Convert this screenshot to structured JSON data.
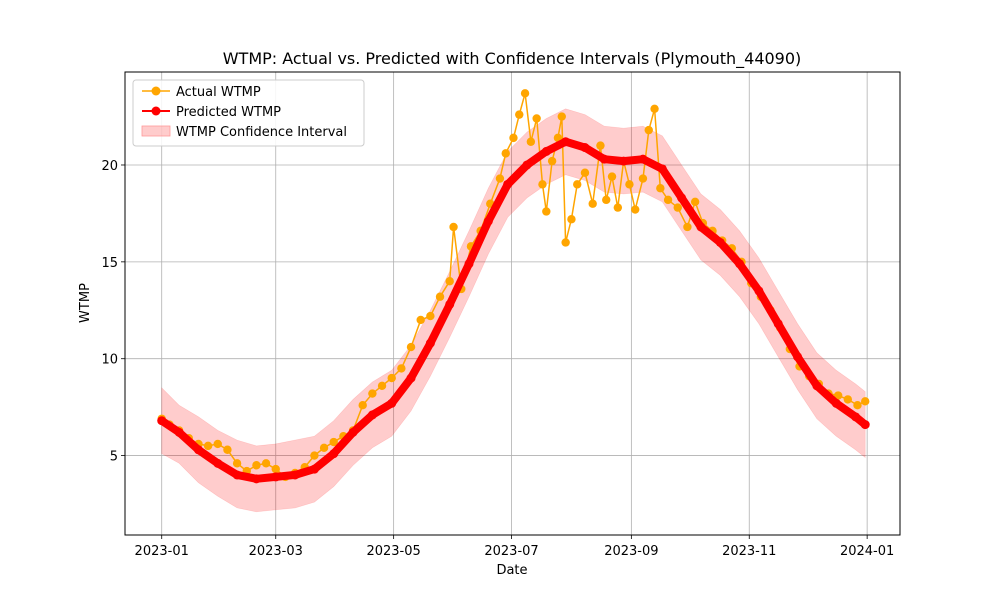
{
  "chart_data": {
    "type": "line",
    "title": "WTMP: Actual vs. Predicted with Confidence Intervals (Plymouth_44090)",
    "xlabel": "Date",
    "ylabel": "WTMP",
    "xlim": [
      "2022-12-13",
      "2024-01-18"
    ],
    "ylim": [
      0.9,
      24.8
    ],
    "x_ticks": [
      "2023-01",
      "2023-03",
      "2023-05",
      "2023-07",
      "2023-09",
      "2023-11",
      "2024-01"
    ],
    "x_tick_dates": [
      "2023-01-01",
      "2023-03-01",
      "2023-05-01",
      "2023-07-01",
      "2023-09-01",
      "2023-11-01",
      "2024-01-01"
    ],
    "y_ticks": [
      5,
      10,
      15,
      20
    ],
    "grid": true,
    "legend_position": "upper-left",
    "colors": {
      "actual": "#ffa500",
      "predicted": "#ff0000",
      "ci": "#ff0000"
    },
    "series": [
      {
        "name": "Actual WTMP",
        "marker": "circle",
        "points": [
          [
            "2023-01-01",
            6.9
          ],
          [
            "2023-01-05",
            6.6
          ],
          [
            "2023-01-10",
            6.3
          ],
          [
            "2023-01-15",
            5.9
          ],
          [
            "2023-01-20",
            5.6
          ],
          [
            "2023-01-25",
            5.5
          ],
          [
            "2023-01-30",
            5.6
          ],
          [
            "2023-02-04",
            5.3
          ],
          [
            "2023-02-09",
            4.6
          ],
          [
            "2023-02-14",
            4.2
          ],
          [
            "2023-02-19",
            4.5
          ],
          [
            "2023-02-24",
            4.6
          ],
          [
            "2023-03-01",
            4.3
          ],
          [
            "2023-03-06",
            3.9
          ],
          [
            "2023-03-11",
            4.1
          ],
          [
            "2023-03-16",
            4.4
          ],
          [
            "2023-03-21",
            5.0
          ],
          [
            "2023-03-26",
            5.4
          ],
          [
            "2023-03-31",
            5.7
          ],
          [
            "2023-04-05",
            6.0
          ],
          [
            "2023-04-10",
            6.3
          ],
          [
            "2023-04-15",
            7.6
          ],
          [
            "2023-04-20",
            8.2
          ],
          [
            "2023-04-25",
            8.6
          ],
          [
            "2023-04-30",
            9.0
          ],
          [
            "2023-05-05",
            9.5
          ],
          [
            "2023-05-10",
            10.6
          ],
          [
            "2023-05-15",
            12.0
          ],
          [
            "2023-05-20",
            12.2
          ],
          [
            "2023-05-25",
            13.2
          ],
          [
            "2023-05-30",
            14.0
          ],
          [
            "2023-06-01",
            16.8
          ],
          [
            "2023-06-05",
            13.6
          ],
          [
            "2023-06-10",
            15.8
          ],
          [
            "2023-06-15",
            16.6
          ],
          [
            "2023-06-20",
            18.0
          ],
          [
            "2023-06-25",
            19.3
          ],
          [
            "2023-06-28",
            20.6
          ],
          [
            "2023-07-02",
            21.4
          ],
          [
            "2023-07-05",
            22.6
          ],
          [
            "2023-07-08",
            23.7
          ],
          [
            "2023-07-11",
            21.2
          ],
          [
            "2023-07-14",
            22.4
          ],
          [
            "2023-07-17",
            19.0
          ],
          [
            "2023-07-19",
            17.6
          ],
          [
            "2023-07-22",
            20.2
          ],
          [
            "2023-07-25",
            21.4
          ],
          [
            "2023-07-27",
            22.5
          ],
          [
            "2023-07-29",
            16.0
          ],
          [
            "2023-08-01",
            17.2
          ],
          [
            "2023-08-04",
            19.0
          ],
          [
            "2023-08-08",
            19.6
          ],
          [
            "2023-08-12",
            18.0
          ],
          [
            "2023-08-16",
            21.0
          ],
          [
            "2023-08-19",
            18.2
          ],
          [
            "2023-08-22",
            19.4
          ],
          [
            "2023-08-25",
            17.8
          ],
          [
            "2023-08-28",
            20.2
          ],
          [
            "2023-08-31",
            19.0
          ],
          [
            "2023-09-03",
            17.7
          ],
          [
            "2023-09-07",
            19.3
          ],
          [
            "2023-09-10",
            21.8
          ],
          [
            "2023-09-13",
            22.9
          ],
          [
            "2023-09-16",
            18.8
          ],
          [
            "2023-09-20",
            18.2
          ],
          [
            "2023-09-25",
            17.8
          ],
          [
            "2023-09-30",
            16.8
          ],
          [
            "2023-10-04",
            18.1
          ],
          [
            "2023-10-08",
            17.0
          ],
          [
            "2023-10-13",
            16.6
          ],
          [
            "2023-10-18",
            16.1
          ],
          [
            "2023-10-23",
            15.7
          ],
          [
            "2023-10-28",
            15.0
          ],
          [
            "2023-11-02",
            13.9
          ],
          [
            "2023-11-07",
            13.2
          ],
          [
            "2023-11-12",
            12.5
          ],
          [
            "2023-11-17",
            11.6
          ],
          [
            "2023-11-22",
            10.5
          ],
          [
            "2023-11-27",
            9.6
          ],
          [
            "2023-12-02",
            9.1
          ],
          [
            "2023-12-07",
            8.7
          ],
          [
            "2023-12-12",
            8.2
          ],
          [
            "2023-12-17",
            8.1
          ],
          [
            "2023-12-22",
            7.9
          ],
          [
            "2023-12-27",
            7.6
          ],
          [
            "2023-12-31",
            7.8
          ]
        ]
      },
      {
        "name": "Predicted WTMP",
        "marker": "circle",
        "points": [
          [
            "2023-01-01",
            6.8
          ],
          [
            "2023-01-10",
            6.2
          ],
          [
            "2023-01-20",
            5.3
          ],
          [
            "2023-01-30",
            4.6
          ],
          [
            "2023-02-09",
            4.0
          ],
          [
            "2023-02-19",
            3.8
          ],
          [
            "2023-03-01",
            3.9
          ],
          [
            "2023-03-11",
            4.0
          ],
          [
            "2023-03-21",
            4.3
          ],
          [
            "2023-03-31",
            5.1
          ],
          [
            "2023-04-10",
            6.2
          ],
          [
            "2023-04-20",
            7.1
          ],
          [
            "2023-04-30",
            7.7
          ],
          [
            "2023-05-10",
            9.0
          ],
          [
            "2023-05-20",
            10.8
          ],
          [
            "2023-05-30",
            12.8
          ],
          [
            "2023-06-09",
            14.9
          ],
          [
            "2023-06-19",
            17.1
          ],
          [
            "2023-06-29",
            19.0
          ],
          [
            "2023-07-09",
            20.0
          ],
          [
            "2023-07-19",
            20.7
          ],
          [
            "2023-07-29",
            21.2
          ],
          [
            "2023-08-08",
            20.9
          ],
          [
            "2023-08-18",
            20.3
          ],
          [
            "2023-08-28",
            20.2
          ],
          [
            "2023-09-07",
            20.3
          ],
          [
            "2023-09-17",
            19.8
          ],
          [
            "2023-09-27",
            18.3
          ],
          [
            "2023-10-07",
            16.8
          ],
          [
            "2023-10-17",
            16.0
          ],
          [
            "2023-10-27",
            14.9
          ],
          [
            "2023-11-06",
            13.5
          ],
          [
            "2023-11-16",
            11.8
          ],
          [
            "2023-11-26",
            10.1
          ],
          [
            "2023-12-06",
            8.6
          ],
          [
            "2023-12-16",
            7.7
          ],
          [
            "2023-12-26",
            7.0
          ],
          [
            "2023-12-31",
            6.6
          ]
        ]
      },
      {
        "name": "WTMP Confidence Interval",
        "band": [
          [
            "2023-01-01",
            5.1,
            8.5
          ],
          [
            "2023-01-10",
            4.6,
            7.6
          ],
          [
            "2023-01-20",
            3.6,
            7.0
          ],
          [
            "2023-01-30",
            2.9,
            6.3
          ],
          [
            "2023-02-09",
            2.3,
            5.8
          ],
          [
            "2023-02-19",
            2.1,
            5.5
          ],
          [
            "2023-03-01",
            2.2,
            5.6
          ],
          [
            "2023-03-11",
            2.3,
            5.8
          ],
          [
            "2023-03-21",
            2.6,
            6.0
          ],
          [
            "2023-03-31",
            3.4,
            6.8
          ],
          [
            "2023-04-10",
            4.5,
            7.9
          ],
          [
            "2023-04-20",
            5.4,
            8.8
          ],
          [
            "2023-04-30",
            6.0,
            9.4
          ],
          [
            "2023-05-10",
            7.3,
            10.7
          ],
          [
            "2023-05-20",
            9.1,
            12.5
          ],
          [
            "2023-05-30",
            11.1,
            14.5
          ],
          [
            "2023-06-09",
            13.2,
            16.6
          ],
          [
            "2023-06-19",
            15.4,
            18.8
          ],
          [
            "2023-06-29",
            17.3,
            20.7
          ],
          [
            "2023-07-09",
            18.3,
            21.7
          ],
          [
            "2023-07-19",
            19.0,
            22.4
          ],
          [
            "2023-07-29",
            19.5,
            22.9
          ],
          [
            "2023-08-08",
            19.2,
            22.6
          ],
          [
            "2023-08-18",
            18.6,
            22.0
          ],
          [
            "2023-08-28",
            18.5,
            21.9
          ],
          [
            "2023-09-07",
            18.6,
            22.0
          ],
          [
            "2023-09-17",
            18.1,
            21.5
          ],
          [
            "2023-09-27",
            16.6,
            20.0
          ],
          [
            "2023-10-07",
            15.1,
            18.5
          ],
          [
            "2023-10-17",
            14.3,
            17.7
          ],
          [
            "2023-10-27",
            13.2,
            16.6
          ],
          [
            "2023-11-06",
            11.8,
            15.2
          ],
          [
            "2023-11-16",
            10.1,
            13.5
          ],
          [
            "2023-11-26",
            8.4,
            11.8
          ],
          [
            "2023-12-06",
            6.9,
            10.3
          ],
          [
            "2023-12-16",
            6.0,
            9.4
          ],
          [
            "2023-12-26",
            5.3,
            8.7
          ],
          [
            "2023-12-31",
            4.9,
            8.3
          ]
        ]
      }
    ]
  }
}
